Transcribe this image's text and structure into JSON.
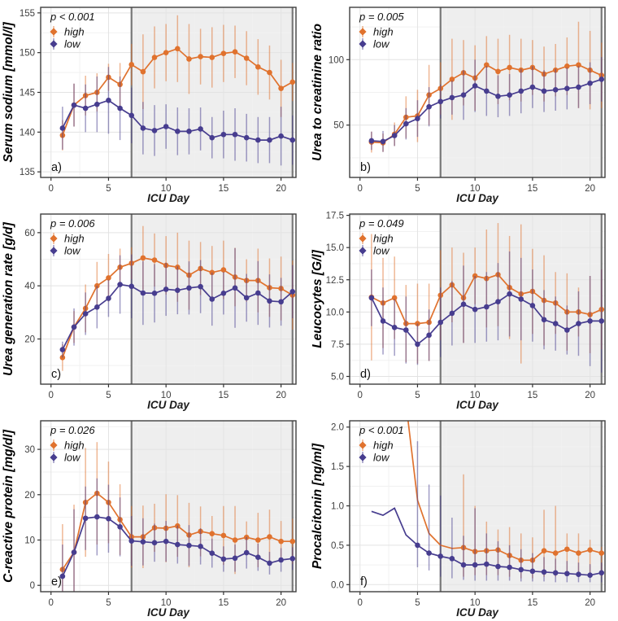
{
  "figure": {
    "description": "Six-panel longitudinal ICU laboratory parameter figure comparing high vs low groups over ICU days",
    "xlabel": "ICU Day",
    "legend": {
      "high_label": "high",
      "low_label": "low"
    },
    "colors": {
      "high": "#E0722E",
      "low": "#473D8F",
      "band": "rgba(0,0,0,0.065)",
      "band_edge": "#787878",
      "grid_major": "#e3e3e3",
      "grid_minor": "#f1f1f1",
      "border": "#3f3f3f"
    }
  },
  "chart_data": {
    "type": "line",
    "x": [
      1,
      2,
      3,
      4,
      5,
      6,
      7,
      8,
      9,
      10,
      11,
      12,
      13,
      14,
      15,
      16,
      17,
      18,
      19,
      20,
      21
    ],
    "xlabel": "ICU Day",
    "xticks": [
      0,
      5,
      10,
      15,
      20
    ],
    "xlim": [
      -0.9,
      21.3
    ],
    "band": {
      "from": 7,
      "to": 21
    },
    "legend_entries": [
      "high",
      "low"
    ],
    "panels": [
      {
        "id": "a",
        "letter": "a)",
        "p_value": "p < 0.001",
        "ylabel": "Serum sodium [mmol/l]",
        "ylim": [
          134.3,
          155.7
        ],
        "yticks": [
          135,
          140,
          145,
          150,
          155
        ],
        "ydecimals": 0,
        "series": {
          "high": {
            "y": [
              139.6,
              143.4,
              144.6,
              145.0,
              146.9,
              146.0,
              148.5,
              147.6,
              149.4,
              150.0,
              150.5,
              149.2,
              149.5,
              149.4,
              149.9,
              150.1,
              149.3,
              148.2,
              147.5,
              145.5,
              146.3
            ],
            "err": [
              1.9,
              2.7,
              2.5,
              2.4,
              1.7,
              2.7,
              2.6,
              4.7,
              3.9,
              3.6,
              4.2,
              4.4,
              3.5,
              3.8,
              3.6,
              3.3,
              3.4,
              3.5,
              3.4,
              3.6,
              2.4
            ]
          },
          "low": {
            "y": [
              140.5,
              143.4,
              143.0,
              143.5,
              144.0,
              143.0,
              142.1,
              140.5,
              140.2,
              140.7,
              140.1,
              140.1,
              140.4,
              139.3,
              139.7,
              139.7,
              139.3,
              139.0,
              139.0,
              139.5,
              139.0
            ],
            "err": [
              2.7,
              2.7,
              3.0,
              3.5,
              4.2,
              4.0,
              3.5,
              3.3,
              3.2,
              2.8,
              3.0,
              2.9,
              2.7,
              2.6,
              3.0,
              3.3,
              3.0,
              2.9,
              2.9,
              3.7,
              3.1
            ]
          }
        }
      },
      {
        "id": "b",
        "letter": "b)",
        "p_value": "p = 0.005",
        "ylabel": "Urea to creatinine ratio",
        "ylim": [
          10,
          140
        ],
        "yticks": [
          50,
          100
        ],
        "ydecimals": 0,
        "series": {
          "high": {
            "y": [
              37,
              36.5,
              43,
              56,
              57,
              73,
              78,
              85,
              90,
              86,
              96,
              91,
              94,
              92,
              94,
              89,
              92,
              95,
              96,
              92,
              88
            ],
            "err": [
              8,
              7,
              9,
              16,
              20,
              23,
              20,
              31,
              25,
              25,
              22,
              25,
              25,
              24,
              21,
              21,
              20,
              22,
              33,
              30,
              25
            ]
          },
          "low": {
            "y": [
              38,
              37.5,
              42,
              51,
              55,
              64,
              68,
              71,
              73,
              80,
              76,
              72,
              73,
              76,
              79,
              76,
              77,
              78,
              79,
              82,
              85
            ],
            "err": [
              7,
              8,
              8,
              12,
              14,
              15,
              13,
              13,
              19,
              20,
              19,
              16,
              16,
              17,
              16,
              16,
              16,
              16,
              16,
              16,
              17
            ]
          }
        }
      },
      {
        "id": "c",
        "letter": "c)",
        "p_value": "p = 0.006",
        "ylabel": "Urea generation rate [g/d]",
        "ylim": [
          3,
          67
        ],
        "yticks": [
          20,
          40,
          60
        ],
        "ydecimals": 0,
        "series": {
          "high": {
            "y": [
              13,
              24.5,
              31.5,
              40,
              43,
              47,
              48.5,
              50.5,
              49.7,
              47.7,
              47,
              44,
              46.5,
              45,
              46,
              43.3,
              42,
              42,
              39.3,
              39,
              36.5
            ],
            "err": [
              5,
              6,
              9,
              9,
              9,
              7,
              6,
              12,
              10,
              11,
              13,
              13,
              10,
              10,
              11,
              11,
              8,
              12,
              11,
              12,
              13
            ]
          },
          "low": {
            "y": [
              16,
              24.5,
              29.5,
              32,
              35.3,
              40.5,
              39.8,
              37.3,
              37.2,
              38.7,
              38.3,
              39.2,
              39.7,
              35,
              37.2,
              39.2,
              35.5,
              37.3,
              34.3,
              34,
              37.8
            ],
            "err": [
              3,
              7,
              8,
              8,
              7,
              11,
              12,
              12,
              11,
              10,
              9,
              10,
              10,
              10,
              8,
              15,
              9,
              12,
              10,
              9,
              10
            ]
          }
        }
      },
      {
        "id": "d",
        "letter": "d)",
        "p_value": "p = 0.049",
        "ylabel": "Leucocytes [G/l]",
        "ylim": [
          4.4,
          17.6
        ],
        "yticks": [
          5,
          7.5,
          10,
          12.5,
          15,
          17.5
        ],
        "ydecimals": 1,
        "series": {
          "high": {
            "y": [
              11.15,
              10.7,
              11.1,
              9.1,
              9.1,
              9.2,
              11.3,
              12.1,
              11.1,
              12.8,
              12.6,
              12.9,
              11.9,
              11.4,
              11.6,
              10.9,
              10.7,
              10.0,
              10.0,
              9.8,
              10.2
            ],
            "err": [
              4.9,
              3.5,
              3.2,
              3.0,
              3.1,
              3.0,
              3.5,
              2.9,
              3.5,
              2.2,
              3.8,
              4.0,
              4.0,
              5.4,
              3.3,
              3.5,
              2.4,
              3.0,
              1.9,
              3.0,
              3.1
            ]
          },
          "low": {
            "y": [
              11.1,
              9.3,
              8.8,
              8.6,
              7.5,
              8.2,
              9.2,
              9.9,
              10.6,
              10.2,
              10.4,
              10.8,
              11.4,
              11.0,
              10.5,
              9.4,
              9.1,
              8.6,
              9.1,
              9.3,
              9.3
            ],
            "err": [
              2.2,
              2.6,
              2.2,
              2.6,
              1.6,
              2.0,
              2.7,
              2.5,
              3.0,
              2.6,
              2.7,
              3.0,
              3.3,
              3.2,
              2.8,
              2.3,
              2.1,
              1.9,
              2.5,
              3.5,
              4.0
            ]
          }
        }
      },
      {
        "id": "e",
        "letter": "e)",
        "p_value": "p = 0.026",
        "ylabel": "C-reactive protein [mg/dl]",
        "ylim": [
          -1.4,
          36.3
        ],
        "yticks": [
          0,
          10,
          20,
          30
        ],
        "ydecimals": 0,
        "series": {
          "high": {
            "y": [
              3.5,
              7.3,
              18.3,
              20.3,
              18.3,
              14.5,
              10.7,
              10.7,
              12.7,
              12.6,
              13.1,
              11.1,
              11.9,
              11.4,
              11.0,
              10.0,
              10.6,
              10.0,
              10.7,
              9.7,
              9.7
            ],
            "err": [
              10,
              10.5,
              12,
              11.3,
              9,
              7.8,
              6.8,
              6.9,
              5.3,
              7.5,
              6.8,
              7.1,
              5.5,
              3.9,
              6.5,
              7.5,
              3.5,
              6,
              6,
              4.5,
              5
            ]
          },
          "low": {
            "y": [
              2.0,
              7.3,
              14.8,
              15.1,
              14.7,
              12.9,
              9.8,
              9.6,
              9.4,
              9.7,
              9.0,
              8.8,
              8.6,
              7.1,
              5.8,
              6.0,
              7.2,
              6.2,
              4.9,
              5.6,
              5.9
            ],
            "err": [
              7,
              9.5,
              7,
              8.5,
              7.5,
              6.5,
              5.5,
              5.2,
              4.2,
              4.5,
              4.2,
              4.5,
              4,
              3.2,
              2.8,
              3,
              3.5,
              3,
              2.5,
              2.6,
              2.5
            ]
          }
        }
      },
      {
        "id": "f",
        "letter": "f)",
        "p_value": "p < 0.001",
        "ylabel": "Procalcitonin [ng/ml]",
        "ylim": [
          -0.09,
          2.08
        ],
        "yticks": [
          0,
          0.5,
          1,
          1.5,
          2
        ],
        "ydecimals": 1,
        "series": {
          "high": {
            "y": [
              null,
              null,
              null,
              2.3,
              1.07,
              0.65,
              0.5,
              0.46,
              0.47,
              0.42,
              0.43,
              0.44,
              0.37,
              0.31,
              0.31,
              0.43,
              0.4,
              0.45,
              0.4,
              0.44,
              0.4
            ],
            "hi": [
              null,
              null,
              null,
              null,
              null,
              null,
              null,
              null,
              1.4,
              1.0,
              0.8,
              0.7,
              0.73,
              0.65,
              0.6,
              0.95,
              1.0,
              0.65,
              0.65,
              0.57,
              0.48
            ],
            "lo": [
              null,
              null,
              null,
              null,
              null,
              null,
              null,
              null,
              0.1,
              0.12,
              0.12,
              0.12,
              0.1,
              0.08,
              0.08,
              0.1,
              0.1,
              0.12,
              0.1,
              0.12,
              0.1
            ],
            "marker_from": 8
          },
          "low": {
            "y": [
              0.93,
              0.88,
              0.97,
              0.63,
              0.5,
              0.4,
              0.36,
              0.33,
              0.25,
              0.25,
              0.26,
              0.23,
              0.22,
              0.19,
              0.17,
              0.16,
              0.15,
              0.14,
              0.13,
              0.12,
              0.15
            ],
            "hi": [
              null,
              null,
              null,
              null,
              1.82,
              1.27,
              1.13,
              0.85,
              0.62,
              0.97,
              0.65,
              0.55,
              0.5,
              0.45,
              0.4,
              0.35,
              0.33,
              0.3,
              0.28,
              0.26,
              0.28
            ],
            "lo": [
              null,
              null,
              null,
              null,
              0.22,
              0.18,
              0.1,
              0.08,
              0.06,
              0.05,
              0.05,
              0.05,
              0.05,
              0.04,
              0.04,
              0.04,
              0.03,
              0.03,
              0.03,
              0.03,
              0.03
            ],
            "marker_from": 4
          }
        }
      }
    ]
  }
}
